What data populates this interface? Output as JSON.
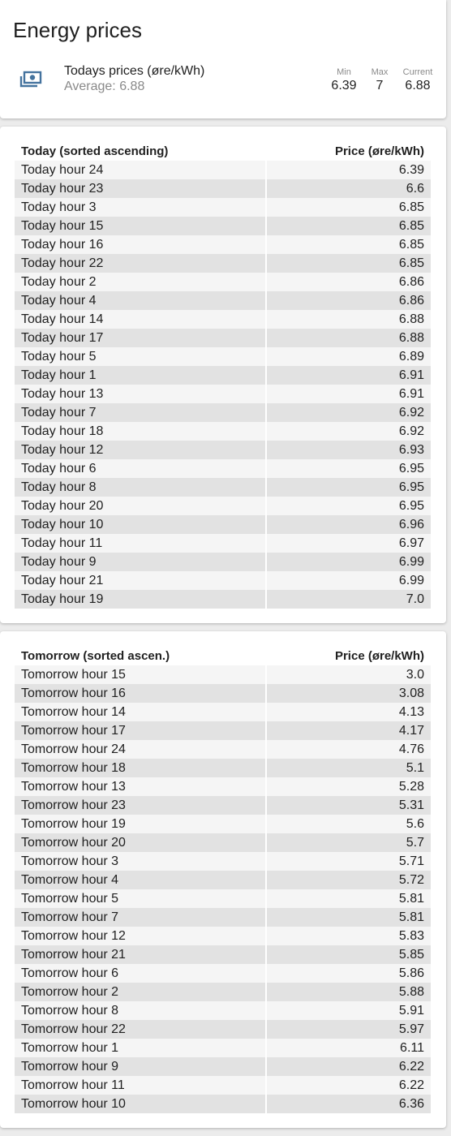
{
  "header": {
    "title": "Energy prices",
    "icon": "cash-icon",
    "accent_color": "#44739e",
    "entity_name": "Todays prices (øre/kWh)",
    "entity_secondary": "Average: 6.88",
    "stats": [
      {
        "label": "Min",
        "value": "6.39"
      },
      {
        "label": "Max",
        "value": "7"
      },
      {
        "label": "Current",
        "value": "6.88"
      }
    ]
  },
  "today": {
    "col_name": "Today (sorted ascending)",
    "col_price": "Price (øre/kWh)",
    "rows": [
      {
        "name": "Today hour 24",
        "price": "6.39"
      },
      {
        "name": "Today hour 23",
        "price": "6.6"
      },
      {
        "name": "Today hour 3",
        "price": "6.85"
      },
      {
        "name": "Today hour 15",
        "price": "6.85"
      },
      {
        "name": "Today hour 16",
        "price": "6.85"
      },
      {
        "name": "Today hour 22",
        "price": "6.85"
      },
      {
        "name": "Today hour 2",
        "price": "6.86"
      },
      {
        "name": "Today hour 4",
        "price": "6.86"
      },
      {
        "name": "Today hour 14",
        "price": "6.88"
      },
      {
        "name": "Today hour 17",
        "price": "6.88"
      },
      {
        "name": "Today hour 5",
        "price": "6.89"
      },
      {
        "name": "Today hour 1",
        "price": "6.91"
      },
      {
        "name": "Today hour 13",
        "price": "6.91"
      },
      {
        "name": "Today hour 7",
        "price": "6.92"
      },
      {
        "name": "Today hour 18",
        "price": "6.92"
      },
      {
        "name": "Today hour 12",
        "price": "6.93"
      },
      {
        "name": "Today hour 6",
        "price": "6.95"
      },
      {
        "name": "Today hour 8",
        "price": "6.95"
      },
      {
        "name": "Today hour 20",
        "price": "6.95"
      },
      {
        "name": "Today hour 10",
        "price": "6.96"
      },
      {
        "name": "Today hour 11",
        "price": "6.97"
      },
      {
        "name": "Today hour 9",
        "price": "6.99"
      },
      {
        "name": "Today hour 21",
        "price": "6.99"
      },
      {
        "name": "Today hour 19",
        "price": "7.0"
      }
    ]
  },
  "tomorrow": {
    "col_name": "Tomorrow (sorted ascen.)",
    "col_price": "Price (øre/kWh)",
    "rows": [
      {
        "name": "Tomorrow hour 15",
        "price": "3.0"
      },
      {
        "name": "Tomorrow hour 16",
        "price": "3.08"
      },
      {
        "name": "Tomorrow hour 14",
        "price": "4.13"
      },
      {
        "name": "Tomorrow hour 17",
        "price": "4.17"
      },
      {
        "name": "Tomorrow hour 24",
        "price": "4.76"
      },
      {
        "name": "Tomorrow hour 18",
        "price": "5.1"
      },
      {
        "name": "Tomorrow hour 13",
        "price": "5.28"
      },
      {
        "name": "Tomorrow hour 23",
        "price": "5.31"
      },
      {
        "name": "Tomorrow hour 19",
        "price": "5.6"
      },
      {
        "name": "Tomorrow hour 20",
        "price": "5.7"
      },
      {
        "name": "Tomorrow hour 3",
        "price": "5.71"
      },
      {
        "name": "Tomorrow hour 4",
        "price": "5.72"
      },
      {
        "name": "Tomorrow hour 5",
        "price": "5.81"
      },
      {
        "name": "Tomorrow hour 7",
        "price": "5.81"
      },
      {
        "name": "Tomorrow hour 12",
        "price": "5.83"
      },
      {
        "name": "Tomorrow hour 21",
        "price": "5.85"
      },
      {
        "name": "Tomorrow hour 6",
        "price": "5.86"
      },
      {
        "name": "Tomorrow hour 2",
        "price": "5.88"
      },
      {
        "name": "Tomorrow hour 8",
        "price": "5.91"
      },
      {
        "name": "Tomorrow hour 22",
        "price": "5.97"
      },
      {
        "name": "Tomorrow hour 1",
        "price": "6.11"
      },
      {
        "name": "Tomorrow hour 9",
        "price": "6.22"
      },
      {
        "name": "Tomorrow hour 11",
        "price": "6.22"
      },
      {
        "name": "Tomorrow hour 10",
        "price": "6.36"
      }
    ]
  }
}
